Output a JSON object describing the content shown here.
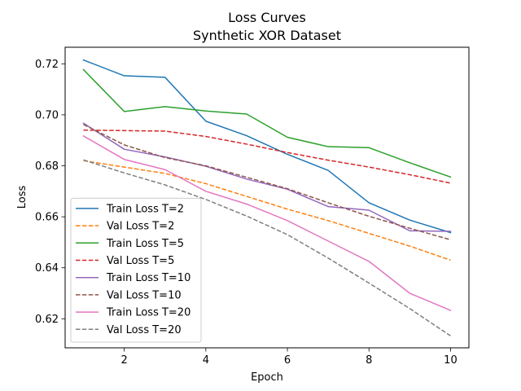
{
  "chart_data": {
    "type": "line",
    "title": "Loss Curves",
    "subtitle": "Synthetic XOR Dataset",
    "xlabel": "Epoch",
    "ylabel": "Loss",
    "xlim": [
      0.55,
      10.45
    ],
    "ylim": [
      0.6086,
      0.7265
    ],
    "xticks": [
      2,
      4,
      6,
      8,
      10
    ],
    "yticks": [
      0.62,
      0.64,
      0.66,
      0.68,
      0.7,
      0.72
    ],
    "ytick_labels": [
      "0.62",
      "0.64",
      "0.66",
      "0.68",
      "0.70",
      "0.72"
    ],
    "grid": false,
    "legend_position": "lower-left",
    "x": [
      1,
      2,
      3,
      4,
      5,
      6,
      7,
      8,
      9,
      10
    ],
    "series": [
      {
        "name": "Train Loss T=2",
        "color": "#1f77b4",
        "style": "solid",
        "values": [
          0.7215,
          0.7153,
          0.7147,
          0.6975,
          0.6918,
          0.6845,
          0.6782,
          0.6655,
          0.6587,
          0.6538
        ]
      },
      {
        "name": "Val Loss T=2",
        "color": "#ff7f0e",
        "style": "dashed",
        "values": [
          0.682,
          0.6795,
          0.677,
          0.673,
          0.668,
          0.663,
          0.6585,
          0.6535,
          0.6485,
          0.643
        ]
      },
      {
        "name": "Train Loss T=5",
        "color": "#2ca02c",
        "style": "solid",
        "values": [
          0.7177,
          0.7013,
          0.7032,
          0.7015,
          0.7003,
          0.6912,
          0.6875,
          0.6871,
          0.6812,
          0.6756
        ]
      },
      {
        "name": "Val Loss T=5",
        "color": "#d62728",
        "style": "dashed",
        "values": [
          0.694,
          0.6938,
          0.6936,
          0.6915,
          0.6885,
          0.6852,
          0.6822,
          0.6795,
          0.6765,
          0.6732
        ]
      },
      {
        "name": "Train Loss T=10",
        "color": "#9467bd",
        "style": "solid",
        "values": [
          0.6967,
          0.6865,
          0.6835,
          0.6798,
          0.6748,
          0.6708,
          0.664,
          0.6626,
          0.6545,
          0.6543
        ]
      },
      {
        "name": "Val Loss T=10",
        "color": "#8c564b",
        "style": "dashed",
        "values": [
          0.6962,
          0.6882,
          0.6832,
          0.68,
          0.6755,
          0.671,
          0.6655,
          0.6602,
          0.6555,
          0.651
        ]
      },
      {
        "name": "Train Loss T=20",
        "color": "#e377c2",
        "style": "solid",
        "values": [
          0.6917,
          0.6825,
          0.6785,
          0.67,
          0.665,
          0.6585,
          0.6505,
          0.6425,
          0.63,
          0.6233
        ]
      },
      {
        "name": "Val Loss T=20",
        "color": "#7f7f7f",
        "style": "dashed",
        "values": [
          0.6823,
          0.6772,
          0.6725,
          0.6668,
          0.6603,
          0.653,
          0.6438,
          0.634,
          0.624,
          0.6133
        ]
      }
    ]
  }
}
